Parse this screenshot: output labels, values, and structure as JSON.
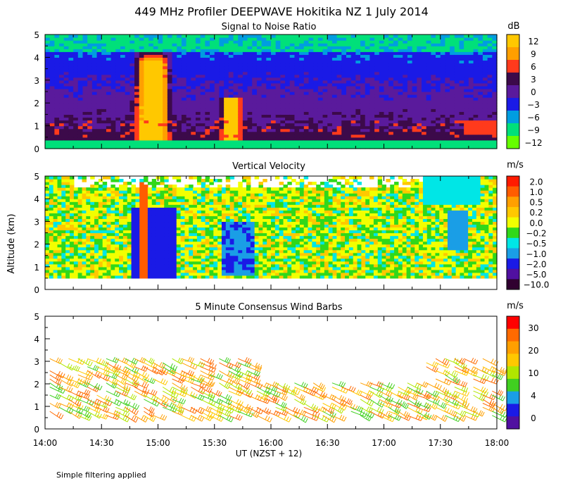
{
  "title": "449 MHz Profiler DEEPWAVE Hokitika NZ  1 July 2014",
  "ylabel": "Altitude (km)",
  "xlabel": "UT  (NZST + 12)",
  "footnote": "Simple filtering applied",
  "chart_data": [
    {
      "type": "heatmap",
      "title": "Signal to Noise Ratio",
      "unit": "dB",
      "x_tick_labels": [
        "14:00",
        "14:30",
        "15:00",
        "15:30",
        "16:00",
        "16:30",
        "17:00",
        "17:30",
        "18:00"
      ],
      "y_tick_labels": [
        "0",
        "1",
        "2",
        "3",
        "4",
        "5"
      ],
      "ylim": [
        0,
        5
      ],
      "colorbar": {
        "labels": [
          "12",
          "9",
          "6",
          "3",
          "0",
          "−3",
          "−6",
          "−9",
          "−12"
        ],
        "colors": [
          "#ffc800",
          "#ff9f00",
          "#ff3a1c",
          "#3c0a4a",
          "#5a1a9c",
          "#1a1ae6",
          "#009de0",
          "#00e07a",
          "#66ff00"
        ]
      }
    },
    {
      "type": "heatmap",
      "title": "Vertical Velocity",
      "unit": "m/s",
      "x_tick_labels": [
        "14:00",
        "14:30",
        "15:00",
        "15:30",
        "16:00",
        "16:30",
        "17:00",
        "17:30",
        "18:00"
      ],
      "y_tick_labels": [
        "0",
        "1",
        "2",
        "3",
        "4",
        "5"
      ],
      "ylim": [
        0,
        5
      ],
      "colorbar": {
        "labels": [
          "2.0",
          "1.0",
          "0.5",
          "0.2",
          "0.0",
          "−0.2",
          "−0.5",
          "−1.0",
          "−2.0",
          "−5.0",
          "−10.0"
        ],
        "colors": [
          "#ff1a00",
          "#ff5c00",
          "#ff9f00",
          "#ffc800",
          "#f2ff00",
          "#30d81a",
          "#00e6e6",
          "#1a9ee6",
          "#1a1ae6",
          "#5010a0",
          "#300030"
        ]
      }
    },
    {
      "type": "scatter",
      "title": "5 Minute Consensus Wind Barbs",
      "unit": "m/s",
      "x_tick_labels": [
        "14:00",
        "14:30",
        "15:00",
        "15:30",
        "16:00",
        "16:30",
        "17:00",
        "17:30",
        "18:00"
      ],
      "y_tick_labels": [
        "0",
        "1",
        "2",
        "3",
        "4",
        "5"
      ],
      "ylim": [
        0,
        5
      ],
      "colorbar": {
        "labels": [
          "30",
          "20",
          "10",
          "4",
          "0"
        ],
        "colors": [
          "#ff0000",
          "#ff6a00",
          "#ff9f00",
          "#ffc800",
          "#b0e600",
          "#40d020",
          "#1a9ee6",
          "#1a1ae6",
          "#5010a0"
        ]
      }
    }
  ]
}
